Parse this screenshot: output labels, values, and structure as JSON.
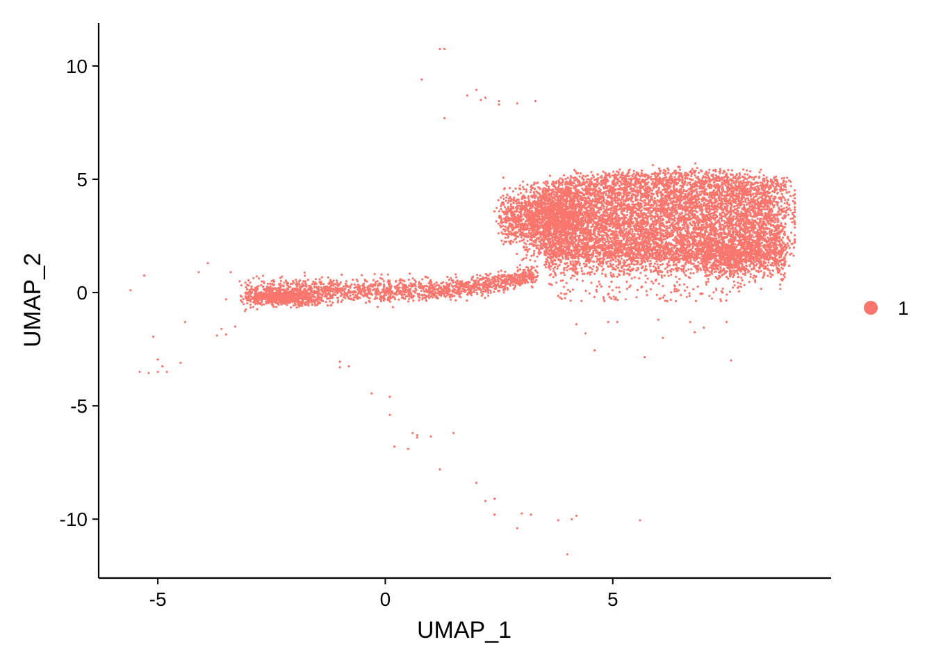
{
  "chart_data": {
    "type": "scatter",
    "xlabel": "UMAP_1",
    "ylabel": "UMAP_2",
    "xlim": [
      -6.3,
      9.8
    ],
    "ylim": [
      -12.6,
      11.9
    ],
    "x_ticks": [
      -5,
      0,
      5
    ],
    "y_ticks": [
      10,
      5,
      0,
      -5,
      -10
    ],
    "x_tick_labels": [
      "-5",
      "0",
      "5"
    ],
    "y_tick_labels": [
      "10",
      "5",
      "0",
      "-5",
      "-10"
    ],
    "grid": false,
    "legend_position": "right",
    "series": [
      {
        "name": "1",
        "color": "#F8766D",
        "points": [
          [
            -5.6,
            0.1
          ],
          [
            -5.3,
            0.75
          ],
          [
            -5.1,
            -1.95
          ],
          [
            -5.4,
            -3.5
          ],
          [
            -5.2,
            -3.55
          ],
          [
            -5.0,
            -3.5
          ],
          [
            -4.9,
            -3.25
          ],
          [
            -5.0,
            -2.95
          ],
          [
            -4.8,
            -3.5
          ],
          [
            -4.5,
            -3.1
          ],
          [
            -4.4,
            -1.3
          ],
          [
            -4.1,
            0.9
          ],
          [
            -3.9,
            1.3
          ],
          [
            -3.7,
            -1.9
          ],
          [
            -3.6,
            -1.6
          ],
          [
            -3.5,
            -1.85
          ],
          [
            -3.5,
            -0.3
          ],
          [
            -3.3,
            -1.5
          ],
          [
            -3.4,
            0.9
          ],
          [
            -3.2,
            0.5
          ],
          [
            -1.0,
            -3.05
          ],
          [
            -1.0,
            -3.3
          ],
          [
            -0.8,
            -3.25
          ],
          [
            -0.3,
            -4.45
          ],
          [
            0.1,
            -4.6
          ],
          [
            0.1,
            -5.4
          ],
          [
            0.2,
            -6.8
          ],
          [
            0.5,
            -6.9
          ],
          [
            0.6,
            -6.2
          ],
          [
            0.7,
            -6.4
          ],
          [
            0.7,
            -6.3
          ],
          [
            1.0,
            -6.35
          ],
          [
            1.5,
            -6.2
          ],
          [
            1.2,
            -7.8
          ],
          [
            2.0,
            -8.4
          ],
          [
            2.2,
            -9.2
          ],
          [
            2.4,
            -9.1
          ],
          [
            2.4,
            -9.8
          ],
          [
            2.9,
            -10.4
          ],
          [
            3.0,
            -9.75
          ],
          [
            3.2,
            -9.8
          ],
          [
            3.8,
            -10.05
          ],
          [
            4.2,
            -9.85
          ],
          [
            4.1,
            -10.0
          ],
          [
            4.0,
            -11.55
          ],
          [
            5.6,
            -10.05
          ],
          [
            0.8,
            9.4
          ],
          [
            1.2,
            10.75
          ],
          [
            1.3,
            10.75
          ],
          [
            1.3,
            7.7
          ],
          [
            1.8,
            8.7
          ],
          [
            2.0,
            8.95
          ],
          [
            2.1,
            8.5
          ],
          [
            2.2,
            8.6
          ],
          [
            2.5,
            8.45
          ],
          [
            2.5,
            8.3
          ],
          [
            2.9,
            8.35
          ],
          [
            3.3,
            8.45
          ],
          [
            4.2,
            -1.4
          ],
          [
            4.4,
            -1.8
          ],
          [
            4.6,
            -2.55
          ],
          [
            4.9,
            -1.3
          ],
          [
            5.1,
            -1.3
          ],
          [
            5.7,
            -2.85
          ],
          [
            6.0,
            -1.2
          ],
          [
            6.1,
            -2.0
          ],
          [
            6.7,
            -1.3
          ],
          [
            6.8,
            -1.75
          ],
          [
            7.0,
            -1.55
          ],
          [
            7.5,
            -1.3
          ],
          [
            7.6,
            -3.0
          ]
        ]
      }
    ]
  }
}
